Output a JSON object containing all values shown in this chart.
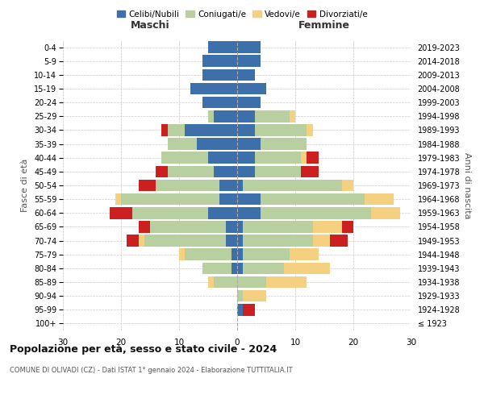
{
  "age_groups": [
    "100+",
    "95-99",
    "90-94",
    "85-89",
    "80-84",
    "75-79",
    "70-74",
    "65-69",
    "60-64",
    "55-59",
    "50-54",
    "45-49",
    "40-44",
    "35-39",
    "30-34",
    "25-29",
    "20-24",
    "15-19",
    "10-14",
    "5-9",
    "0-4"
  ],
  "birth_years": [
    "≤ 1923",
    "1924-1928",
    "1929-1933",
    "1934-1938",
    "1939-1943",
    "1944-1948",
    "1949-1953",
    "1954-1958",
    "1959-1963",
    "1964-1968",
    "1969-1973",
    "1974-1978",
    "1979-1983",
    "1984-1988",
    "1989-1993",
    "1994-1998",
    "1999-2003",
    "2004-2008",
    "2009-2013",
    "2014-2018",
    "2019-2023"
  ],
  "male": {
    "celibi": [
      0,
      0,
      0,
      0,
      1,
      1,
      2,
      2,
      5,
      3,
      3,
      4,
      5,
      7,
      9,
      4,
      6,
      8,
      6,
      6,
      5
    ],
    "coniugati": [
      0,
      0,
      0,
      4,
      5,
      8,
      14,
      13,
      13,
      17,
      11,
      8,
      8,
      5,
      3,
      1,
      0,
      0,
      0,
      0,
      0
    ],
    "vedovi": [
      0,
      0,
      0,
      1,
      0,
      1,
      1,
      0,
      0,
      1,
      0,
      0,
      0,
      0,
      0,
      0,
      0,
      0,
      0,
      0,
      0
    ],
    "divorziati": [
      0,
      0,
      0,
      0,
      0,
      0,
      2,
      2,
      4,
      0,
      3,
      2,
      0,
      0,
      1,
      0,
      0,
      0,
      0,
      0,
      0
    ]
  },
  "female": {
    "nubili": [
      0,
      1,
      0,
      0,
      1,
      1,
      1,
      1,
      4,
      4,
      1,
      3,
      3,
      4,
      3,
      3,
      4,
      5,
      3,
      4,
      4
    ],
    "coniugate": [
      0,
      0,
      1,
      5,
      7,
      8,
      12,
      12,
      19,
      18,
      17,
      8,
      8,
      8,
      9,
      6,
      0,
      0,
      0,
      0,
      0
    ],
    "vedove": [
      0,
      0,
      4,
      7,
      8,
      5,
      3,
      5,
      5,
      5,
      2,
      0,
      1,
      0,
      1,
      1,
      0,
      0,
      0,
      0,
      0
    ],
    "divorziate": [
      0,
      2,
      0,
      0,
      0,
      0,
      3,
      2,
      0,
      0,
      0,
      3,
      2,
      0,
      0,
      0,
      0,
      0,
      0,
      0,
      0
    ]
  },
  "colors": {
    "celibi": "#3d6faa",
    "coniugati": "#b8cfa0",
    "vedovi": "#f5d080",
    "divorziati": "#cc2020"
  },
  "xlim": 30,
  "title": "Popolazione per età, sesso e stato civile - 2024",
  "subtitle": "COMUNE DI OLIVADI (CZ) - Dati ISTAT 1° gennaio 2024 - Elaborazione TUTTITALIA.IT",
  "xlabel_left": "Maschi",
  "xlabel_right": "Femmine",
  "ylabel_left": "Fasce di età",
  "ylabel_right": "Anni di nascita",
  "legend_labels": [
    "Celibi/Nubili",
    "Coniugati/e",
    "Vedovi/e",
    "Divorziati/e"
  ],
  "bg_color": "#ffffff",
  "grid_color": "#cccccc"
}
